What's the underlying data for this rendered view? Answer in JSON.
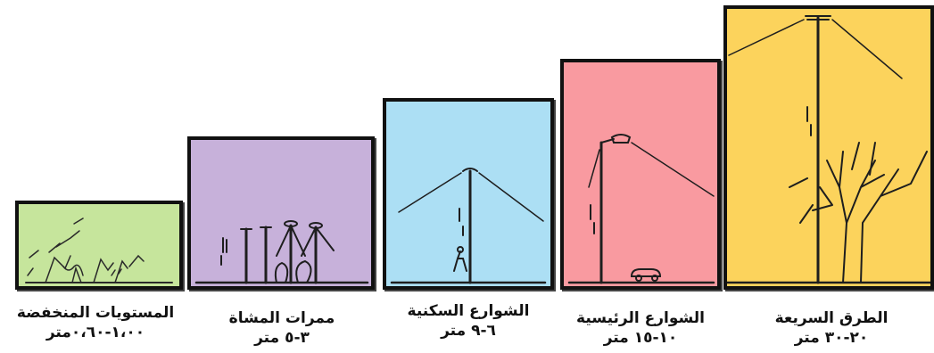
{
  "categories": [
    {
      "id": "low-levels",
      "name": "المستويات المنخفضة",
      "range": "١،٠٠-٠،٦٠متر",
      "color": "#c6e59c"
    },
    {
      "id": "walkways",
      "name": "ممرات المشاة",
      "range": "٣-٥ متر",
      "color": "#c7b1da"
    },
    {
      "id": "residential-streets",
      "name": "الشوارع السكنية",
      "range": "٦-٩ متر",
      "color": "#acdff4"
    },
    {
      "id": "main-streets",
      "name": "الشوارع الرئيسية",
      "range": "١٠-١٥ متر",
      "color": "#f99aa0"
    },
    {
      "id": "highways",
      "name": "الطرق السريعة",
      "range": "٢٠-٣٠ متر",
      "color": "#fcd35c"
    }
  ]
}
